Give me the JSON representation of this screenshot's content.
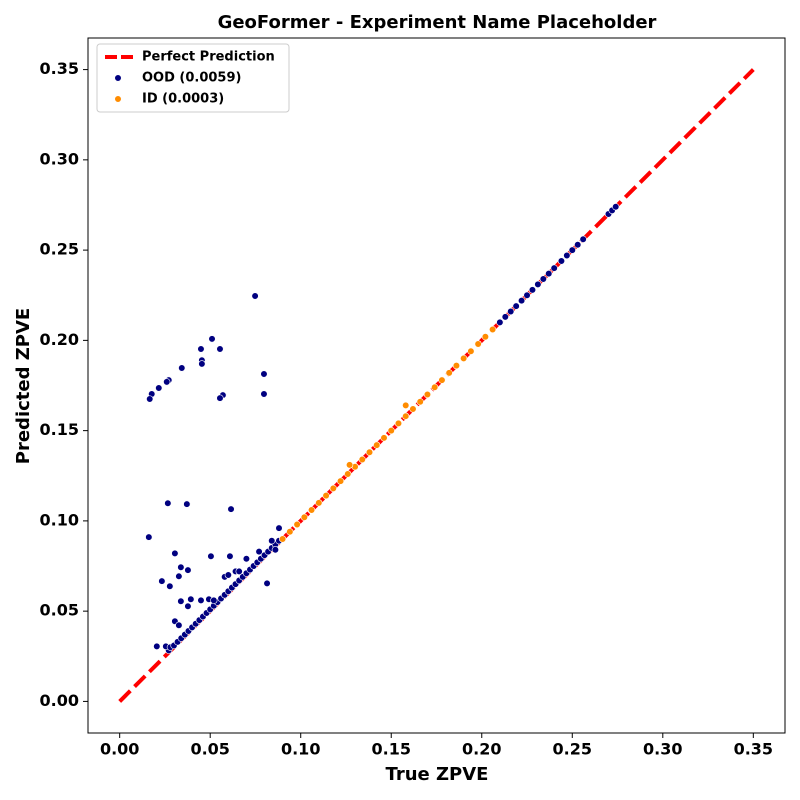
{
  "chart_data": {
    "type": "scatter",
    "title": "GeoFormer - Experiment Name Placeholder",
    "xlabel": "True ZPVE",
    "ylabel": "Predicted ZPVE",
    "xlim": [
      -0.0175,
      0.3675
    ],
    "ylim": [
      -0.0175,
      0.3675
    ],
    "xticks": [
      {
        "value": 0,
        "label": "0.00"
      },
      {
        "value": 0.05,
        "label": "0.05"
      },
      {
        "value": 0.1,
        "label": "0.10"
      },
      {
        "value": 0.15,
        "label": "0.15"
      },
      {
        "value": 0.2,
        "label": "0.20"
      },
      {
        "value": 0.25,
        "label": "0.25"
      },
      {
        "value": 0.3,
        "label": "0.30"
      },
      {
        "value": 0.35,
        "label": "0.35"
      }
    ],
    "yticks": [
      {
        "value": 0,
        "label": "0.00"
      },
      {
        "value": 0.05,
        "label": "0.05"
      },
      {
        "value": 0.1,
        "label": "0.10"
      },
      {
        "value": 0.15,
        "label": "0.15"
      },
      {
        "value": 0.2,
        "label": "0.20"
      },
      {
        "value": 0.25,
        "label": "0.25"
      },
      {
        "value": 0.3,
        "label": "0.30"
      },
      {
        "value": 0.35,
        "label": "0.35"
      }
    ],
    "grid": false,
    "legend": "upper left",
    "series": [
      {
        "name": "Perfect Prediction",
        "type": "line",
        "color": "#ff0000",
        "x": [
          0,
          0.35
        ],
        "y": [
          0,
          0.35
        ]
      },
      {
        "name": "OOD (0.0059)",
        "type": "scatter",
        "color": "#000080",
        "x": [
          0.0748,
          0.051,
          0.0554,
          0.0449,
          0.0454,
          0.0454,
          0.0343,
          0.0797,
          0.0271,
          0.026,
          0.0216,
          0.0177,
          0.0166,
          0.057,
          0.0554,
          0.0797,
          0.0266,
          0.0371,
          0.0615,
          0.0161,
          0.0305,
          0.0504,
          0.0609,
          0.0338,
          0.0377,
          0.0327,
          0.0233,
          0.0277,
          0.0814,
          0.0393,
          0.0377,
          0.0338,
          0.0449,
          0.0493,
          0.0305,
          0.0327,
          0.0205,
          0.0271,
          0.0255,
          0.028,
          0.03,
          0.032,
          0.034,
          0.036,
          0.038,
          0.04,
          0.042,
          0.044,
          0.046,
          0.048,
          0.05,
          0.052,
          0.054,
          0.056,
          0.058,
          0.06,
          0.062,
          0.064,
          0.066,
          0.068,
          0.07,
          0.072,
          0.074,
          0.076,
          0.078,
          0.08,
          0.082,
          0.084,
          0.086,
          0.088,
          0.058,
          0.064,
          0.07,
          0.077,
          0.084,
          0.088,
          0.066,
          0.06,
          0.052,
          0.086,
          0.21,
          0.213,
          0.216,
          0.219,
          0.222,
          0.225,
          0.228,
          0.231,
          0.234,
          0.237,
          0.24,
          0.244,
          0.247,
          0.25,
          0.253,
          0.256,
          0.27,
          0.272,
          0.274
        ],
        "y": [
          0.2246,
          0.2008,
          0.1952,
          0.1952,
          0.189,
          0.187,
          0.1847,
          0.1814,
          0.178,
          0.177,
          0.1736,
          0.1703,
          0.1675,
          0.1697,
          0.168,
          0.1703,
          0.1098,
          0.1093,
          0.1065,
          0.091,
          0.082,
          0.0804,
          0.0804,
          0.0743,
          0.0727,
          0.0693,
          0.0666,
          0.0638,
          0.0654,
          0.0566,
          0.0527,
          0.0555,
          0.056,
          0.0566,
          0.0444,
          0.0422,
          0.0305,
          0.0283,
          0.0305,
          0.03,
          0.031,
          0.033,
          0.035,
          0.037,
          0.039,
          0.041,
          0.043,
          0.045,
          0.047,
          0.049,
          0.051,
          0.053,
          0.055,
          0.057,
          0.059,
          0.061,
          0.063,
          0.065,
          0.067,
          0.069,
          0.071,
          0.073,
          0.075,
          0.077,
          0.079,
          0.081,
          0.083,
          0.085,
          0.087,
          0.089,
          0.069,
          0.072,
          0.079,
          0.083,
          0.089,
          0.096,
          0.072,
          0.07,
          0.056,
          0.084,
          0.21,
          0.213,
          0.216,
          0.219,
          0.222,
          0.225,
          0.228,
          0.231,
          0.234,
          0.237,
          0.24,
          0.244,
          0.247,
          0.25,
          0.253,
          0.256,
          0.27,
          0.272,
          0.274
        ]
      },
      {
        "name": "ID (0.0003)",
        "type": "scatter",
        "color": "#ff8c00",
        "x": [
          0.09,
          0.094,
          0.098,
          0.102,
          0.106,
          0.11,
          0.114,
          0.118,
          0.122,
          0.126,
          0.13,
          0.134,
          0.138,
          0.142,
          0.146,
          0.15,
          0.154,
          0.158,
          0.162,
          0.166,
          0.17,
          0.174,
          0.178,
          0.182,
          0.186,
          0.19,
          0.194,
          0.198,
          0.202,
          0.206,
          0.158,
          0.127
        ],
        "y": [
          0.09,
          0.094,
          0.098,
          0.102,
          0.106,
          0.11,
          0.114,
          0.118,
          0.122,
          0.126,
          0.13,
          0.134,
          0.138,
          0.142,
          0.146,
          0.15,
          0.154,
          0.158,
          0.162,
          0.166,
          0.17,
          0.174,
          0.178,
          0.182,
          0.186,
          0.19,
          0.194,
          0.198,
          0.202,
          0.206,
          0.164,
          0.131
        ]
      }
    ]
  }
}
